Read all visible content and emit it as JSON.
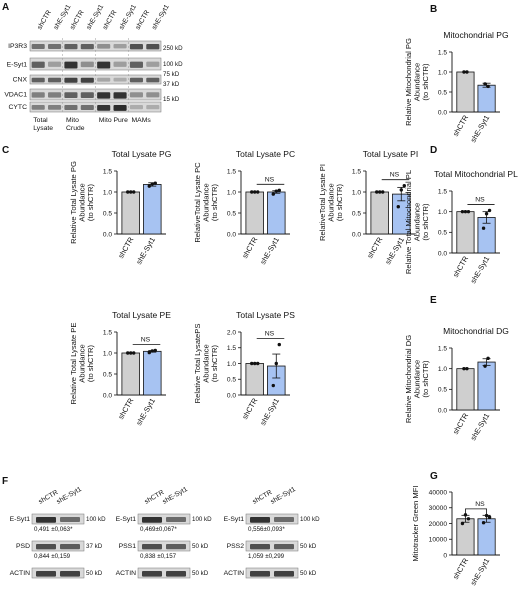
{
  "colors": {
    "shCTR": "#cfcfcf",
    "shE_Syt1": "#a7c3f2",
    "axis": "#111111",
    "band": "#1a1a1a",
    "blot_bg": "#d9d9d9"
  },
  "panel_a": {
    "letter": "A",
    "lanes": [
      "shCTR",
      "shE-Syt1",
      "shCTR",
      "shE-Syt1",
      "shCTR",
      "shE-Syt1",
      "shCTR",
      "shE-Syt1"
    ],
    "rows": [
      "IP3R3",
      "E-Syt1",
      "CNX",
      "VDAC1",
      "CYTC"
    ],
    "markers": [
      "250 kD",
      "100 kD",
      "75 kD",
      "37 kD",
      "15 kD"
    ],
    "fractions": [
      "Total Lysate",
      "Mito Crude",
      "Mito Pure",
      "MAMs"
    ]
  },
  "panel_f": {
    "letter": "F",
    "blots": [
      {
        "lanes": [
          "shCTR",
          "shE-Syt1"
        ],
        "top_label": "E-Syt1",
        "top_marker": "100 kD",
        "top_quant": "0,491 ±0,063*",
        "mid_label": "PSD",
        "mid_marker": "37 kD",
        "mid_quant": "0,844 ±0,159",
        "bottom_label": "ACTIN",
        "bottom_marker": "50 kD"
      },
      {
        "lanes": [
          "shCTR",
          "shE-Syt1"
        ],
        "top_label": "E-Syt1",
        "top_marker": "100 kD",
        "top_quant": "0,469±0,067*",
        "mid_label": "PSS1",
        "mid_marker": "50 kD",
        "mid_quant": "0,838 ±0,157",
        "bottom_label": "ACTIN",
        "bottom_marker": "50 kD"
      },
      {
        "lanes": [
          "shCTR",
          "shE-Syt1"
        ],
        "top_label": "E-Syt1",
        "top_marker": "100 kD",
        "top_quant": "0,556±0,093*",
        "mid_label": "PSS2",
        "mid_marker": "50 kD",
        "mid_quant": "1,059 ±0,299",
        "bottom_label": "ACTIN",
        "bottom_marker": "50 kD"
      }
    ]
  },
  "chart_data": [
    {
      "id": "B",
      "letter": "B",
      "type": "bar",
      "title": "Mitochondrial PG",
      "ylabel": [
        "Relative Mitochondrial PG",
        "Abundance",
        "(to shCTR)"
      ],
      "categories": [
        "shCTR",
        "shE-Syt1"
      ],
      "values": [
        1.0,
        0.67
      ],
      "errors": [
        0,
        0.05
      ],
      "points": [
        [
          1.0,
          1.0
        ],
        [
          0.7,
          0.64
        ]
      ],
      "ylim": [
        0,
        1.5
      ],
      "yticks": [
        0,
        0.5,
        1.0,
        1.5
      ],
      "ns": ""
    },
    {
      "id": "C1",
      "letter": "C",
      "type": "bar",
      "title": "Total Lysate PG",
      "ylabel": [
        "Relative Total Lysate PG",
        "Abundance",
        "(to shCTR)"
      ],
      "categories": [
        "shCTR",
        "shE-Syt1"
      ],
      "values": [
        1.0,
        1.18
      ],
      "errors": [
        0,
        0.04
      ],
      "points": [
        [
          1.0,
          1.0,
          1.0
        ],
        [
          1.14,
          1.19,
          1.21
        ]
      ],
      "ylim": [
        0,
        1.5
      ],
      "yticks": [
        0,
        0.5,
        1.0,
        1.5
      ],
      "ns": ""
    },
    {
      "id": "C2",
      "letter": "",
      "type": "bar",
      "title": "Total Lysate PC",
      "ylabel": [
        "RelativeTotal Lysate PC",
        "Abundance",
        "(to shCTR)"
      ],
      "categories": [
        "shCTR",
        "shE-Syt1"
      ],
      "values": [
        1.0,
        1.0
      ],
      "errors": [
        0,
        0.03
      ],
      "points": [
        [
          1.0,
          1.0,
          1.0
        ],
        [
          0.95,
          1.02,
          1.04
        ]
      ],
      "ylim": [
        0,
        1.5
      ],
      "yticks": [
        0,
        0.5,
        1.0,
        1.5
      ],
      "ns": "NS"
    },
    {
      "id": "C3",
      "letter": "",
      "type": "bar",
      "title": "Total Lysate PI",
      "ylabel": [
        "RelativeTotal Lysate PI",
        "Abundance",
        "(to shCTR)"
      ],
      "categories": [
        "shCTR",
        "shE-Syt1"
      ],
      "values": [
        1.0,
        0.95
      ],
      "errors": [
        0,
        0.16
      ],
      "points": [
        [
          1.0,
          1.0,
          1.0
        ],
        [
          0.65,
          1.05,
          1.15
        ]
      ],
      "ylim": [
        0,
        1.5
      ],
      "yticks": [
        0,
        0.5,
        1.0,
        1.5
      ],
      "ns": "NS"
    },
    {
      "id": "D",
      "letter": "D",
      "type": "bar",
      "title": "Total Mitochondrial PL",
      "ylabel": [
        "Relative Total Mitochondrial PL",
        "Abundance",
        "(to shCTR)"
      ],
      "categories": [
        "shCTR",
        "shE-Syt1"
      ],
      "values": [
        1.0,
        0.86
      ],
      "errors": [
        0,
        0.14
      ],
      "points": [
        [
          1.0,
          1.0,
          1.0
        ],
        [
          0.6,
          0.95,
          1.03
        ]
      ],
      "ylim": [
        0,
        1.5
      ],
      "yticks": [
        0,
        0.5,
        1.0,
        1.5
      ],
      "ns": "NS"
    },
    {
      "id": "C4",
      "letter": "",
      "type": "bar",
      "title": "Total Lysate PE",
      "ylabel": [
        "Relative Total Lysate PE",
        "Abundance",
        "(to shCTR)"
      ],
      "categories": [
        "shCTR",
        "shE-Syt1"
      ],
      "values": [
        1.0,
        1.04
      ],
      "errors": [
        0,
        0.02
      ],
      "points": [
        [
          1.0,
          1.0,
          1.0
        ],
        [
          1.01,
          1.05,
          1.06
        ]
      ],
      "ylim": [
        0,
        1.5
      ],
      "yticks": [
        0,
        0.5,
        1.0,
        1.5
      ],
      "ns": "NS"
    },
    {
      "id": "C5",
      "letter": "",
      "type": "bar",
      "title": "Total Lysate PS",
      "ylabel": [
        "Relative Total LysatePS",
        "Abundance",
        "(to shCTR)"
      ],
      "categories": [
        "shCTR",
        "shE-Syt1"
      ],
      "values": [
        1.0,
        0.92
      ],
      "errors": [
        0,
        0.38
      ],
      "points": [
        [
          1.0,
          1.0,
          1.0
        ],
        [
          0.3,
          1.0,
          1.6
        ]
      ],
      "ylim": [
        0,
        2.0
      ],
      "yticks": [
        0,
        0.5,
        1.0,
        1.5,
        2.0
      ],
      "ns": "NS"
    },
    {
      "id": "E",
      "letter": "E",
      "type": "bar",
      "title": "Mitochondrial DG",
      "ylabel": [
        "Relative Mitochondrial DG",
        "Abundance",
        "(to shCTR)"
      ],
      "categories": [
        "shCTR",
        "shE-Syt1"
      ],
      "values": [
        1.0,
        1.16
      ],
      "errors": [
        0,
        0.08
      ],
      "points": [
        [
          1.0,
          1.0
        ],
        [
          1.06,
          1.25
        ]
      ],
      "ylim": [
        0,
        1.5
      ],
      "yticks": [
        0,
        0.5,
        1.0,
        1.5
      ],
      "ns": ""
    },
    {
      "id": "G",
      "letter": "G",
      "type": "bar",
      "title": "",
      "ylabel": [
        "Mitotracker Green MFI"
      ],
      "categories": [
        "shCTR",
        "shE-Syt1"
      ],
      "values": [
        23000,
        23000
      ],
      "errors": [
        2200,
        2200
      ],
      "points": [
        [
          20000,
          25500,
          23000
        ],
        [
          20500,
          25000,
          24000
        ]
      ],
      "ylim": [
        0,
        40000
      ],
      "yticks": [
        0,
        10000,
        20000,
        30000,
        40000
      ],
      "ns": "NS"
    }
  ]
}
